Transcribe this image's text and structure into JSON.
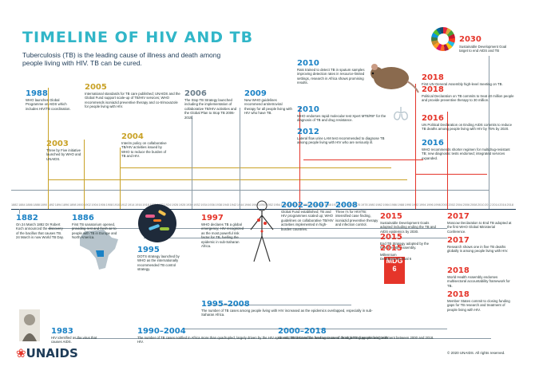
{
  "title": "TIMELINE OF HIV AND TB",
  "subtitle": "Tuberculosis (TB) is the leading cause of illness and death among people living with HIV. TB can be cured.",
  "axis_years": [
    "1882",
    "1884",
    "1886",
    "1888",
    "1890",
    "1892",
    "1894",
    "1896",
    "1898",
    "1900",
    "1902",
    "1904",
    "1906",
    "1908",
    "1910",
    "1912",
    "1914",
    "1916",
    "1918",
    "1920",
    "1922",
    "1924",
    "1926",
    "1928",
    "1930",
    "1932",
    "1934",
    "1936",
    "1938",
    "1940",
    "1942",
    "1944",
    "1946",
    "1948",
    "1950",
    "1952",
    "1954",
    "1956",
    "1958",
    "1960",
    "1962",
    "1964",
    "1966",
    "1968",
    "1970",
    "1972",
    "1974",
    "1976",
    "1978",
    "1980",
    "1982",
    "1984",
    "1986",
    "1988",
    "1990",
    "1992",
    "1994",
    "1996",
    "1998",
    "2000",
    "2002",
    "2004",
    "2006",
    "2008",
    "2010",
    "2012",
    "2014",
    "2016",
    "2018"
  ],
  "events_top": [
    {
      "year": "1988",
      "text": "WHO launches Global Programme on AIDS which includes HIV/TB coordination."
    },
    {
      "year": "2003",
      "text": "Three by Five initiative launched by WHO and UNAIDS."
    },
    {
      "year": "2004",
      "text": "Interim policy on collaborative TB/HIV activities issued by WHO to reduce the burden of TB and HIV."
    },
    {
      "year": "2005",
      "text": "International standards for TB care published; UNAIDS and the Global Fund support scale-up of TB/HIV services; WHO recommends isoniazid preventive therapy and co-trimoxazole for people living with HIV."
    },
    {
      "year": "2006",
      "text": "The Stop TB Strategy launched including the implementation of collaborative TB/HIV activities and the Global Plan to Stop TB 2006-2015."
    },
    {
      "year": "2009",
      "text": "New WHO guidelines recommend antiretroviral therapy for all people living with HIV who have TB."
    },
    {
      "year": "2010",
      "text": "WHO endorses rapid molecular test Xpert MTB/RIF for the diagnosis of TB and drug resistance."
    },
    {
      "year": "2010",
      "text": "Rats trained to detect TB in sputum samples improving detection rates in resource-limited settings, research in Africa shows promising results."
    },
    {
      "year": "2012",
      "text": "Lateral flow urine LAM test recommended to diagnose TB among people living with HIV who are seriously ill."
    },
    {
      "year": "2016",
      "text": "UN Political Declaration on Ending AIDS commits to reduce TB deaths among people living with HIV by 75% by 2020."
    },
    {
      "year": "2016",
      "text": "WHO recommends shorter regimen for multidrug-resistant TB; new diagnostic tests endorsed; integrated services expanded."
    },
    {
      "year": "2018",
      "text": "First UN General Assembly high-level meeting on TB."
    },
    {
      "year": "2018",
      "text": "Political Declaration on TB commits to treat 40 million people and provide preventive therapy to 30 million."
    }
  ],
  "events_bottom": [
    {
      "year": "1882",
      "text": "On 24 March 1882 Dr Robert Koch announced the discovery of the bacillus that causes TB. 24 March is now World TB Day."
    },
    {
      "year": "1886",
      "text": "First TB sanatorium opened, providing rest and fresh air to people with TB in Europe and North America."
    },
    {
      "year": "1983",
      "text": "HIV identified as the virus that causes AIDS."
    },
    {
      "year": "1995",
      "text": "DOTS strategy launched by WHO as the internationally recommended TB control strategy."
    },
    {
      "year": "1997",
      "text": "WHO declares TB a global emergency; HIV recognized as the most powerful risk factor for TB, fuelling the epidemic in sub-Saharan Africa."
    },
    {
      "year": "1995–2008",
      "text": "The number of TB cases among people living with HIV increased as the epidemics overlapped, especially in sub-Saharan Africa."
    },
    {
      "year": "1990–2004",
      "text": "The number of TB cases notified in Africa more than quadrupled, largely driven by the HIV epidemic; TB became the leading cause of death among people living with HIV."
    },
    {
      "year": "2002–2007",
      "text": "Global Fund established; TB and HIV programmes scaled up; WHO guidelines on collaborative TB/HIV activities implemented in high-burden countries."
    },
    {
      "year": "2008",
      "text": "Three I's for HIV/TB: intensified case finding, isoniazid preventive therapy and infection control."
    },
    {
      "year": "2015",
      "text": "Sustainable Development Goals adopted including ending the TB and AIDS epidemics by 2030."
    },
    {
      "year": "2015",
      "text": "End TB Strategy adopted by the World Health Assembly."
    },
    {
      "year": "2015",
      "text": "Millennium Development Goal 6 targets for TB and HIV achieved."
    },
    {
      "year": "2017",
      "text": "Moscow Declaration to End TB adopted at the first WHO Global Ministerial Conference."
    },
    {
      "year": "2017",
      "text": "Research shows one in five TB deaths globally is among people living with HIV."
    },
    {
      "year": "2018",
      "text": "World Health Assembly endorses multisectoral accountability framework for TB."
    },
    {
      "year": "2018",
      "text": "Member States commit to closing funding gaps for TB research and treatment of people living with HIV."
    },
    {
      "year": "2000–2018",
      "text": "An estimated 54 million lives were saved through TB diagnosis and treatment between 2000 and 2018."
    }
  ],
  "sdg": {
    "year": "2030",
    "text": "Sustainable Development Goal target to end AIDS and TB"
  },
  "mdg_label": "MDG 6",
  "footer": {
    "logo": "UNAIDS",
    "copyright": "© 2020 UNAIDS. All rights reserved."
  },
  "colors": {
    "title": "#31b6c8",
    "accent_blue": "#1b82c5",
    "accent_gold": "#c9a227",
    "accent_red": "#e5352a",
    "navy": "#1d3b57"
  }
}
